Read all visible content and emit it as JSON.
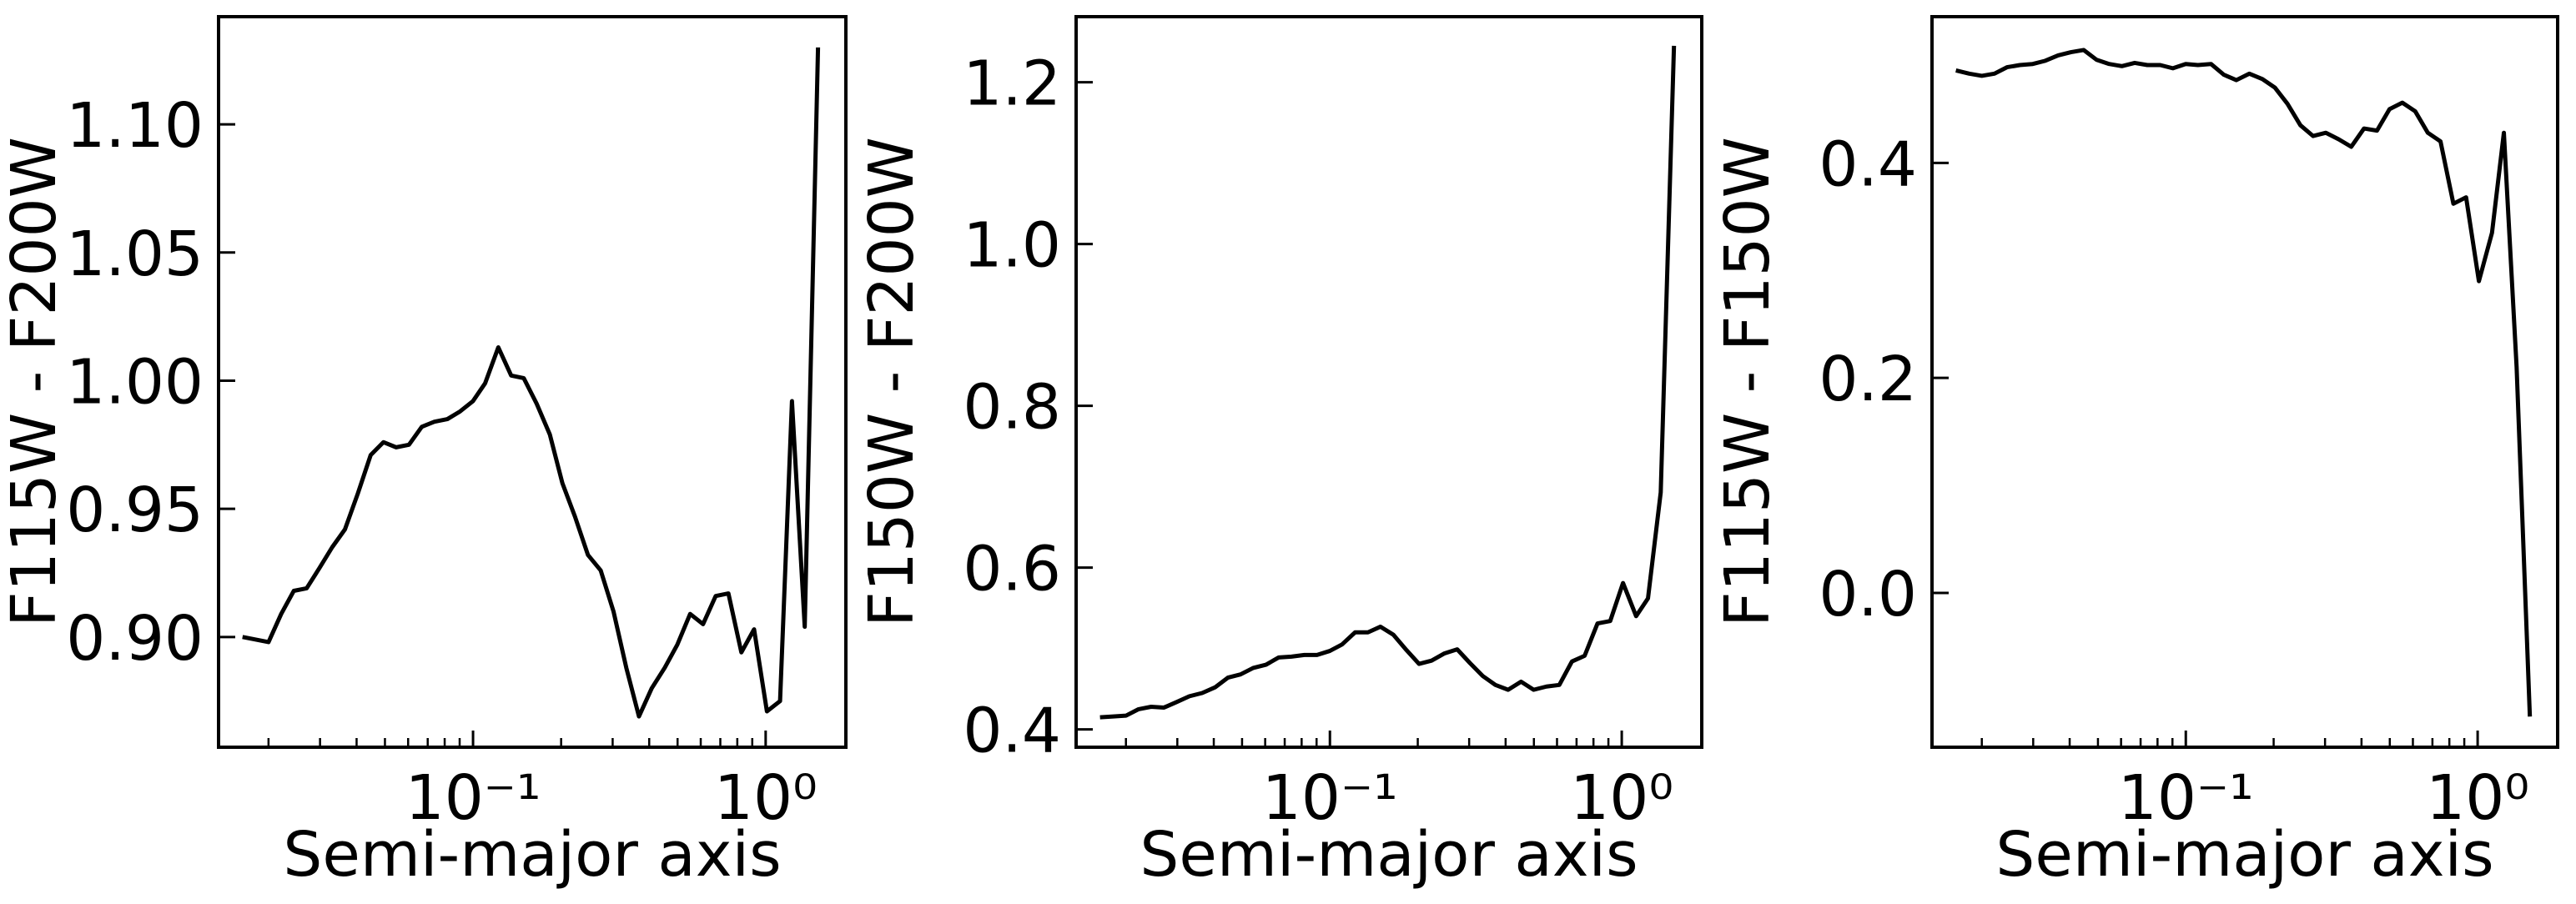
{
  "chart_data": [
    {
      "type": "line",
      "xlabel": "Semi-major axis",
      "ylabel": "F115W - F200W",
      "xscale": "log",
      "color": "#000000",
      "x": [
        0.0163,
        0.0181,
        0.02,
        0.0221,
        0.0244,
        0.027,
        0.0299,
        0.033,
        0.0365,
        0.0404,
        0.0447,
        0.0494,
        0.0546,
        0.0604,
        0.0668,
        0.0738,
        0.0817,
        0.0903,
        0.0999,
        0.11,
        0.122,
        0.135,
        0.149,
        0.165,
        0.183,
        0.202,
        0.223,
        0.247,
        0.273,
        0.302,
        0.334,
        0.369,
        0.408,
        0.452,
        0.499,
        0.552,
        0.611,
        0.675,
        0.746,
        0.826,
        0.913,
        1.01,
        1.12,
        1.23,
        1.36,
        1.51
      ],
      "values": [
        0.9,
        0.899,
        0.898,
        0.909,
        0.918,
        0.919,
        0.927,
        0.935,
        0.942,
        0.956,
        0.971,
        0.976,
        0.974,
        0.975,
        0.982,
        0.984,
        0.985,
        0.988,
        0.992,
        0.999,
        1.013,
        1.002,
        1.001,
        0.991,
        0.979,
        0.96,
        0.947,
        0.932,
        0.926,
        0.91,
        0.888,
        0.869,
        0.88,
        0.888,
        0.897,
        0.909,
        0.905,
        0.916,
        0.917,
        0.894,
        0.903,
        0.871,
        0.875,
        0.992,
        0.904,
        1.13
      ],
      "xlim": [
        0.0135,
        1.88
      ],
      "ylim": [
        0.857,
        1.142
      ],
      "xticks": [
        {
          "value": 0.1,
          "label": "10⁻¹"
        },
        {
          "value": 1,
          "label": "10⁰"
        }
      ],
      "xminorticks": [
        0.02,
        0.03,
        0.04,
        0.05,
        0.06,
        0.07,
        0.08,
        0.09,
        0.2,
        0.3,
        0.4,
        0.5,
        0.6,
        0.7,
        0.8,
        0.9
      ],
      "yticks": [
        {
          "value": 0.9,
          "label": "0.90"
        },
        0.95,
        {
          "value": 1,
          "label": "1.00"
        },
        1.05,
        {
          "value": 1.1,
          "label": "1.10"
        }
      ]
    },
    {
      "type": "line",
      "xlabel": "Semi-major axis",
      "ylabel": "F150W - F200W",
      "xscale": "log",
      "color": "#000000",
      "x": [
        0.0163,
        0.0181,
        0.02,
        0.0221,
        0.0244,
        0.027,
        0.0299,
        0.033,
        0.0365,
        0.0404,
        0.0447,
        0.0494,
        0.0546,
        0.0604,
        0.0668,
        0.0738,
        0.0817,
        0.0903,
        0.0999,
        0.11,
        0.122,
        0.135,
        0.149,
        0.165,
        0.183,
        0.202,
        0.223,
        0.247,
        0.273,
        0.302,
        0.334,
        0.369,
        0.408,
        0.452,
        0.499,
        0.552,
        0.611,
        0.675,
        0.746,
        0.826,
        0.913,
        1.01,
        1.12,
        1.23,
        1.36,
        1.51
      ],
      "values": [
        0.415,
        0.416,
        0.417,
        0.425,
        0.428,
        0.427,
        0.434,
        0.441,
        0.445,
        0.452,
        0.464,
        0.468,
        0.476,
        0.48,
        0.489,
        0.49,
        0.492,
        0.492,
        0.497,
        0.505,
        0.52,
        0.52,
        0.527,
        0.517,
        0.498,
        0.481,
        0.485,
        0.494,
        0.499,
        0.482,
        0.466,
        0.455,
        0.449,
        0.459,
        0.449,
        0.453,
        0.455,
        0.484,
        0.491,
        0.531,
        0.534,
        0.581,
        0.54,
        0.562,
        0.693,
        1.245
      ],
      "xlim": [
        0.0135,
        1.88
      ],
      "ylim": [
        0.378,
        1.281
      ],
      "xticks": [
        {
          "value": 0.1,
          "label": "10⁻¹"
        },
        {
          "value": 1,
          "label": "10⁰"
        }
      ],
      "xminorticks": [
        0.02,
        0.03,
        0.04,
        0.05,
        0.06,
        0.07,
        0.08,
        0.09,
        0.2,
        0.3,
        0.4,
        0.5,
        0.6,
        0.7,
        0.8,
        0.9
      ],
      "yticks": [
        0.4,
        0.6,
        0.8,
        {
          "value": 1,
          "label": "1.0"
        },
        1.2
      ]
    },
    {
      "type": "line",
      "xlabel": "Semi-major axis",
      "ylabel": "F115W - F150W",
      "xscale": "log",
      "color": "#000000",
      "x": [
        0.0163,
        0.0181,
        0.02,
        0.0221,
        0.0244,
        0.027,
        0.0299,
        0.033,
        0.0365,
        0.0404,
        0.0447,
        0.0494,
        0.0546,
        0.0604,
        0.0668,
        0.0738,
        0.0817,
        0.0903,
        0.0999,
        0.11,
        0.122,
        0.135,
        0.149,
        0.165,
        0.183,
        0.202,
        0.223,
        0.247,
        0.273,
        0.302,
        0.334,
        0.369,
        0.408,
        0.452,
        0.499,
        0.552,
        0.611,
        0.675,
        0.746,
        0.826,
        0.913,
        1.01,
        1.12,
        1.23,
        1.36,
        1.51
      ],
      "values": [
        0.486,
        0.483,
        0.481,
        0.483,
        0.489,
        0.491,
        0.492,
        0.495,
        0.5,
        0.503,
        0.505,
        0.496,
        0.492,
        0.49,
        0.493,
        0.491,
        0.491,
        0.488,
        0.492,
        0.491,
        0.492,
        0.482,
        0.477,
        0.483,
        0.478,
        0.47,
        0.455,
        0.435,
        0.425,
        0.428,
        0.422,
        0.415,
        0.432,
        0.43,
        0.45,
        0.456,
        0.448,
        0.428,
        0.42,
        0.362,
        0.368,
        0.29,
        0.335,
        0.428,
        0.21,
        -0.115
      ],
      "xlim": [
        0.0135,
        1.88
      ],
      "ylim": [
        -0.1435,
        0.536
      ],
      "xticks": [
        {
          "value": 0.1,
          "label": "10⁻¹"
        },
        {
          "value": 1,
          "label": "10⁰"
        }
      ],
      "xminorticks": [
        0.02,
        0.03,
        0.04,
        0.05,
        0.06,
        0.07,
        0.08,
        0.09,
        0.2,
        0.3,
        0.4,
        0.5,
        0.6,
        0.7,
        0.8,
        0.9
      ],
      "yticks": [
        {
          "value": 0,
          "label": "0.0"
        },
        0.2,
        0.4
      ]
    }
  ]
}
